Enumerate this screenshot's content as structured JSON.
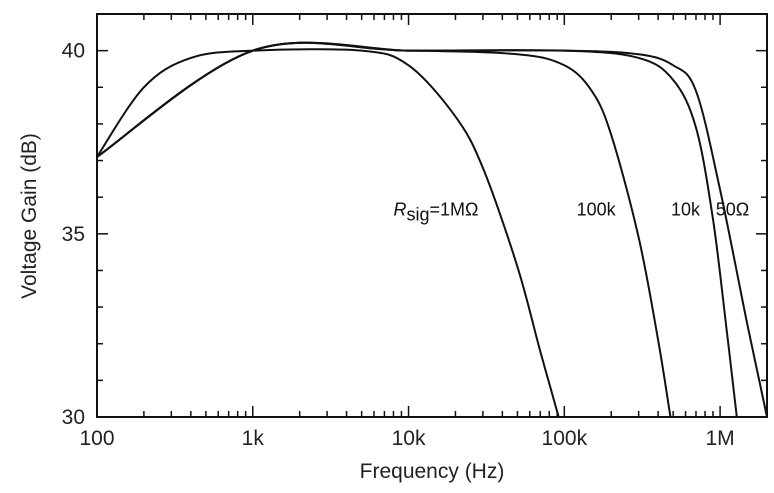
{
  "chart_data": {
    "type": "line",
    "xlabel": "Frequency (Hz)",
    "ylabel": "Voltage Gain (dB)",
    "x_scale": "log",
    "xlim": [
      100,
      2000000
    ],
    "ylim": [
      30,
      41
    ],
    "x_ticks": [
      {
        "value": 100,
        "label": "100"
      },
      {
        "value": 1000,
        "label": "1k"
      },
      {
        "value": 10000,
        "label": "10k"
      },
      {
        "value": 100000,
        "label": "100k"
      },
      {
        "value": 1000000,
        "label": "1M"
      }
    ],
    "y_ticks": [
      {
        "value": 30,
        "label": "30"
      },
      {
        "value": 35,
        "label": "35"
      },
      {
        "value": 40,
        "label": "40"
      }
    ],
    "grid": false,
    "series": [
      {
        "name": "Rsig=1MΩ",
        "label_parts": {
          "italic": "R",
          "sub": "sig",
          "rest": "=1MΩ"
        },
        "x": [
          100,
          200,
          400,
          1000,
          5000,
          10000,
          20000,
          30000,
          50000,
          70000,
          92000
        ],
        "y": [
          37.1,
          39.0,
          39.8,
          40.0,
          40.0,
          39.6,
          38.2,
          36.8,
          34.1,
          31.8,
          30.0
        ]
      },
      {
        "name": "100k",
        "x": [
          100,
          1000,
          10000,
          50000,
          100000,
          150000,
          200000,
          300000,
          400000,
          480000
        ],
        "y": [
          37.1,
          40.0,
          40.0,
          39.9,
          39.6,
          38.9,
          37.7,
          34.9,
          32.1,
          30.0
        ]
      },
      {
        "name": "10k",
        "x": [
          100,
          1000,
          10000,
          100000,
          300000,
          500000,
          700000,
          900000,
          1100000,
          1280000
        ],
        "y": [
          37.1,
          40.0,
          40.0,
          40.0,
          39.8,
          39.2,
          37.9,
          35.4,
          32.4,
          30.0
        ]
      },
      {
        "name": "50Ω",
        "x": [
          100,
          1000,
          10000,
          100000,
          300000,
          500000,
          700000,
          1000000,
          1500000,
          2000000
        ],
        "y": [
          37.1,
          40.0,
          40.0,
          40.0,
          39.9,
          39.6,
          38.9,
          36.2,
          32.5,
          30.0
        ]
      }
    ],
    "annotations": [
      {
        "series": "Rsig=1MΩ",
        "x": 15000,
        "y": 35.5
      },
      {
        "series": "100k",
        "x": 160000,
        "y": 35.5
      },
      {
        "series": "10k",
        "x": 600000,
        "y": 35.5
      },
      {
        "series": "50Ω",
        "x": 1200000,
        "y": 35.5
      }
    ]
  }
}
